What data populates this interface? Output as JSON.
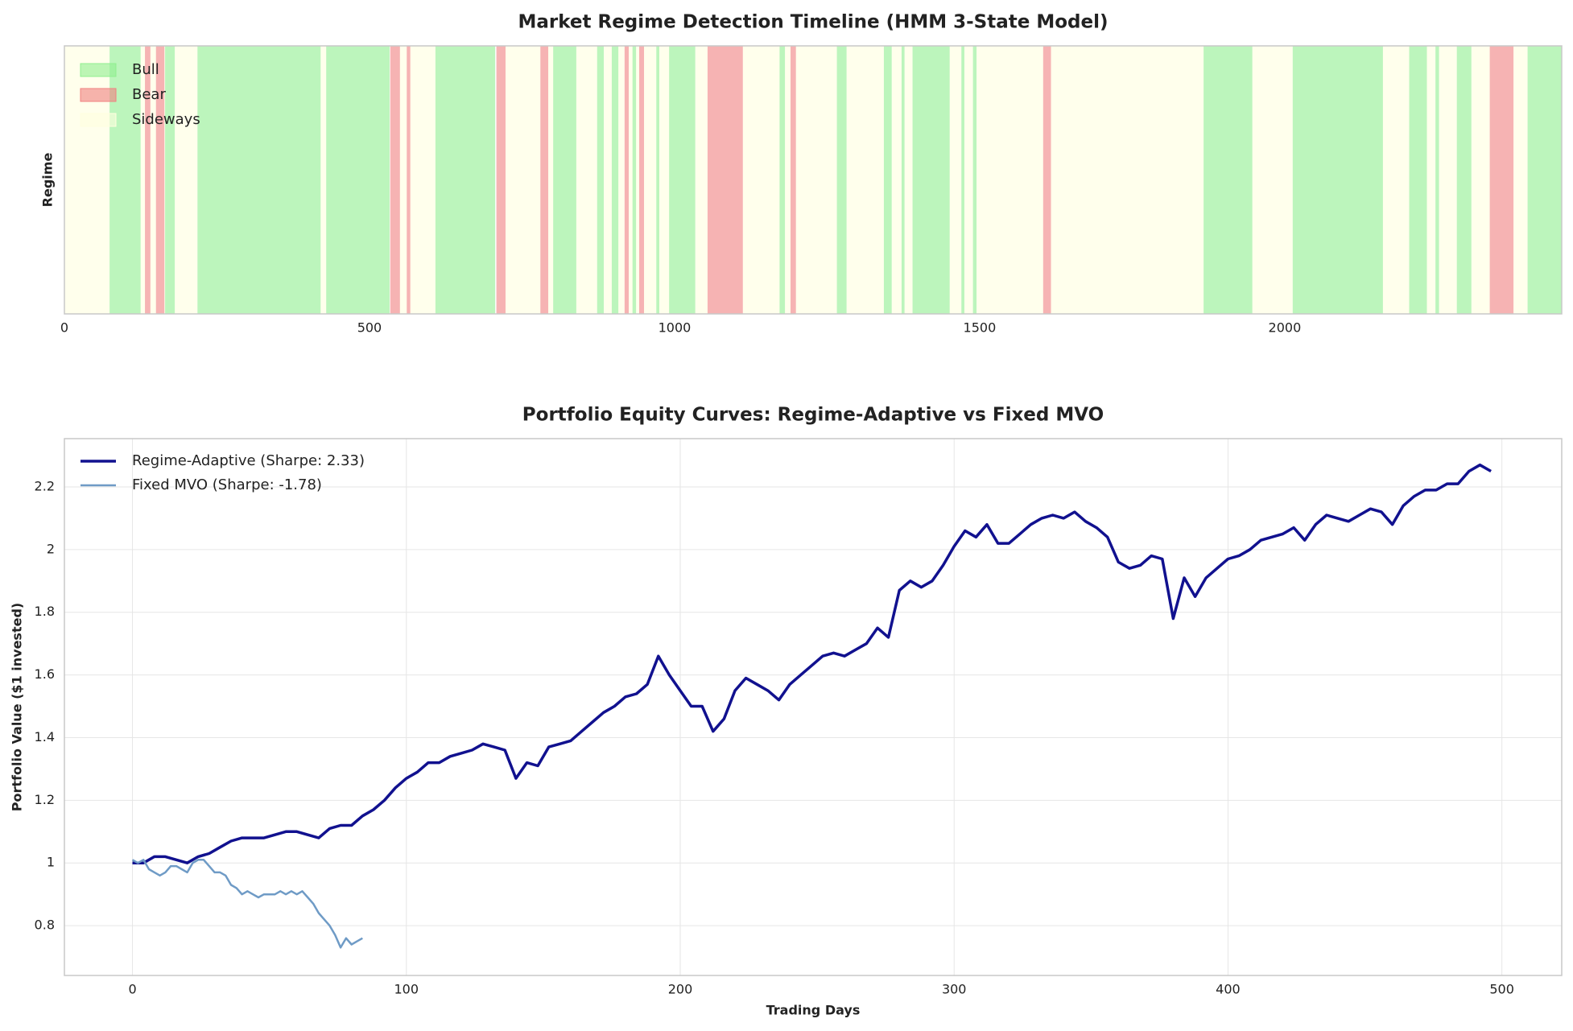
{
  "chart_data": [
    {
      "type": "span",
      "title": "Market Regime Detection Timeline (HMM 3-State Model)",
      "ylabel": "Regime",
      "xlim": [
        0,
        2454
      ],
      "xticks": [
        0,
        500,
        1000,
        1500,
        2000
      ],
      "alpha": 0.6,
      "legend": "upper left",
      "series": [
        {
          "name": "Bull",
          "color": "#90ee90",
          "spans": [
            [
              74,
              125
            ],
            [
              165,
              181
            ],
            [
              218,
              420
            ],
            [
              429,
              533
            ],
            [
              608,
              706
            ],
            [
              801,
              839
            ],
            [
              873,
              884
            ],
            [
              897,
              908
            ],
            [
              931,
              937
            ],
            [
              970,
              975
            ],
            [
              991,
              1034
            ],
            [
              1172,
              1181
            ],
            [
              1266,
              1282
            ],
            [
              1343,
              1356
            ],
            [
              1372,
              1377
            ],
            [
              1390,
              1451
            ],
            [
              1470,
              1475
            ],
            [
              1489,
              1495
            ],
            [
              1867,
              1947
            ],
            [
              2013,
              2161
            ],
            [
              2204,
              2233
            ],
            [
              2247,
              2253
            ],
            [
              2282,
              2306
            ],
            [
              2398,
              2454
            ]
          ]
        },
        {
          "name": "Bear",
          "color": "#f08080",
          "spans": [
            [
              132,
              141
            ],
            [
              150,
              164
            ],
            [
              534,
              550
            ],
            [
              561,
              567
            ],
            [
              708,
              723
            ],
            [
              780,
              793
            ],
            [
              918,
              925
            ],
            [
              942,
              950
            ],
            [
              1054,
              1112
            ],
            [
              1190,
              1199
            ],
            [
              1604,
              1617
            ],
            [
              2336,
              2375
            ]
          ]
        },
        {
          "name": "Sideways",
          "color": "#ffffe0",
          "spans": [
            [
              0,
              74
            ],
            [
              125,
              132
            ],
            [
              141,
              150
            ],
            [
              164,
              165
            ],
            [
              181,
              218
            ],
            [
              420,
              429
            ],
            [
              550,
              561
            ],
            [
              567,
              608
            ],
            [
              723,
              780
            ],
            [
              793,
              801
            ],
            [
              839,
              873
            ],
            [
              884,
              897
            ],
            [
              908,
              918
            ],
            [
              925,
              931
            ],
            [
              937,
              942
            ],
            [
              950,
              970
            ],
            [
              975,
              991
            ],
            [
              1034,
              1054
            ],
            [
              1112,
              1172
            ],
            [
              1181,
              1190
            ],
            [
              1199,
              1266
            ],
            [
              1282,
              1343
            ],
            [
              1356,
              1372
            ],
            [
              1377,
              1390
            ],
            [
              1451,
              1470
            ],
            [
              1475,
              1489
            ],
            [
              1495,
              1604
            ],
            [
              1617,
              1867
            ],
            [
              1947,
              2013
            ],
            [
              2161,
              2204
            ],
            [
              2233,
              2247
            ],
            [
              2253,
              2282
            ],
            [
              2306,
              2336
            ],
            [
              2375,
              2398
            ]
          ]
        }
      ]
    },
    {
      "type": "line",
      "title": "Portfolio Equity Curves: Regime-Adaptive vs Fixed MVO",
      "xlabel": "Trading Days",
      "ylabel": "Portfolio Value ($1 invested)",
      "xlim": [
        -24.85,
        521.85
      ],
      "xticks": [
        0,
        100,
        200,
        300,
        400,
        500
      ],
      "ylim": [
        0.641,
        2.354
      ],
      "yticks": [
        0.8,
        1.0,
        1.2,
        1.4,
        1.6,
        1.8,
        2.0,
        2.2
      ],
      "grid": true,
      "legend": "upper left",
      "series": [
        {
          "name": "Regime-Adaptive (Sharpe: 2.33)",
          "color": "#11118f",
          "width": 3.5,
          "x": [
            0,
            4,
            8,
            12,
            16,
            20,
            24,
            28,
            32,
            36,
            40,
            44,
            48,
            52,
            56,
            60,
            64,
            68,
            72,
            76,
            80,
            84,
            88,
            92,
            96,
            100,
            104,
            108,
            112,
            116,
            120,
            124,
            128,
            132,
            136,
            140,
            144,
            148,
            152,
            156,
            160,
            164,
            168,
            172,
            176,
            180,
            184,
            188,
            192,
            196,
            200,
            204,
            208,
            212,
            216,
            220,
            224,
            228,
            232,
            236,
            240,
            244,
            248,
            252,
            256,
            260,
            264,
            268,
            272,
            276,
            280,
            284,
            288,
            292,
            296,
            300,
            304,
            308,
            312,
            316,
            320,
            324,
            328,
            332,
            336,
            340,
            344,
            348,
            352,
            356,
            360,
            364,
            368,
            372,
            376,
            380,
            384,
            388,
            392,
            396,
            400,
            404,
            408,
            412,
            416,
            420,
            424,
            428,
            432,
            436,
            440,
            444,
            448,
            452,
            456,
            460,
            464,
            468,
            472,
            476,
            480,
            484,
            488,
            492,
            496
          ],
          "values": [
            1.0,
            1.0,
            1.02,
            1.02,
            1.01,
            1.0,
            1.02,
            1.03,
            1.05,
            1.07,
            1.08,
            1.08,
            1.08,
            1.09,
            1.1,
            1.1,
            1.09,
            1.08,
            1.11,
            1.12,
            1.12,
            1.15,
            1.17,
            1.2,
            1.24,
            1.27,
            1.29,
            1.32,
            1.32,
            1.34,
            1.35,
            1.36,
            1.38,
            1.37,
            1.36,
            1.27,
            1.32,
            1.31,
            1.37,
            1.38,
            1.39,
            1.42,
            1.45,
            1.48,
            1.5,
            1.53,
            1.54,
            1.57,
            1.66,
            1.6,
            1.55,
            1.5,
            1.5,
            1.42,
            1.46,
            1.55,
            1.59,
            1.57,
            1.55,
            1.52,
            1.57,
            1.6,
            1.63,
            1.66,
            1.67,
            1.66,
            1.68,
            1.7,
            1.75,
            1.72,
            1.87,
            1.9,
            1.88,
            1.9,
            1.95,
            2.01,
            2.06,
            2.04,
            2.08,
            2.02,
            2.02,
            2.05,
            2.08,
            2.1,
            2.11,
            2.1,
            2.12,
            2.09,
            2.07,
            2.04,
            1.96,
            1.94,
            1.95,
            1.98,
            1.97,
            1.78,
            1.91,
            1.85,
            1.91,
            1.94,
            1.97,
            1.98,
            2.0,
            2.03,
            2.04,
            2.05,
            2.07,
            2.03,
            2.08,
            2.11,
            2.1,
            2.09,
            2.11,
            2.13,
            2.12,
            2.08,
            2.14,
            2.17,
            2.19,
            2.19,
            2.21,
            2.21,
            2.25,
            2.27,
            2.25
          ]
        },
        {
          "name": "Fixed MVO (Sharpe: -1.78)",
          "color": "#6f9bc6",
          "width": 2.5,
          "x": [
            0,
            2,
            4,
            6,
            8,
            10,
            12,
            14,
            16,
            18,
            20,
            22,
            24,
            26,
            28,
            30,
            32,
            34,
            36,
            38,
            40,
            42,
            44,
            46,
            48,
            50,
            52,
            54,
            56,
            58,
            60,
            62,
            64,
            66,
            68,
            70,
            72,
            74,
            76,
            78,
            80,
            82,
            84
          ],
          "values": [
            1.01,
            1.0,
            1.01,
            0.98,
            0.97,
            0.96,
            0.97,
            0.99,
            0.99,
            0.98,
            0.97,
            1.0,
            1.01,
            1.01,
            0.99,
            0.97,
            0.97,
            0.96,
            0.93,
            0.92,
            0.9,
            0.91,
            0.9,
            0.89,
            0.9,
            0.9,
            0.9,
            0.91,
            0.9,
            0.91,
            0.9,
            0.91,
            0.89,
            0.87,
            0.84,
            0.82,
            0.8,
            0.77,
            0.73,
            0.76,
            0.74,
            0.75,
            0.76
          ]
        }
      ]
    }
  ]
}
